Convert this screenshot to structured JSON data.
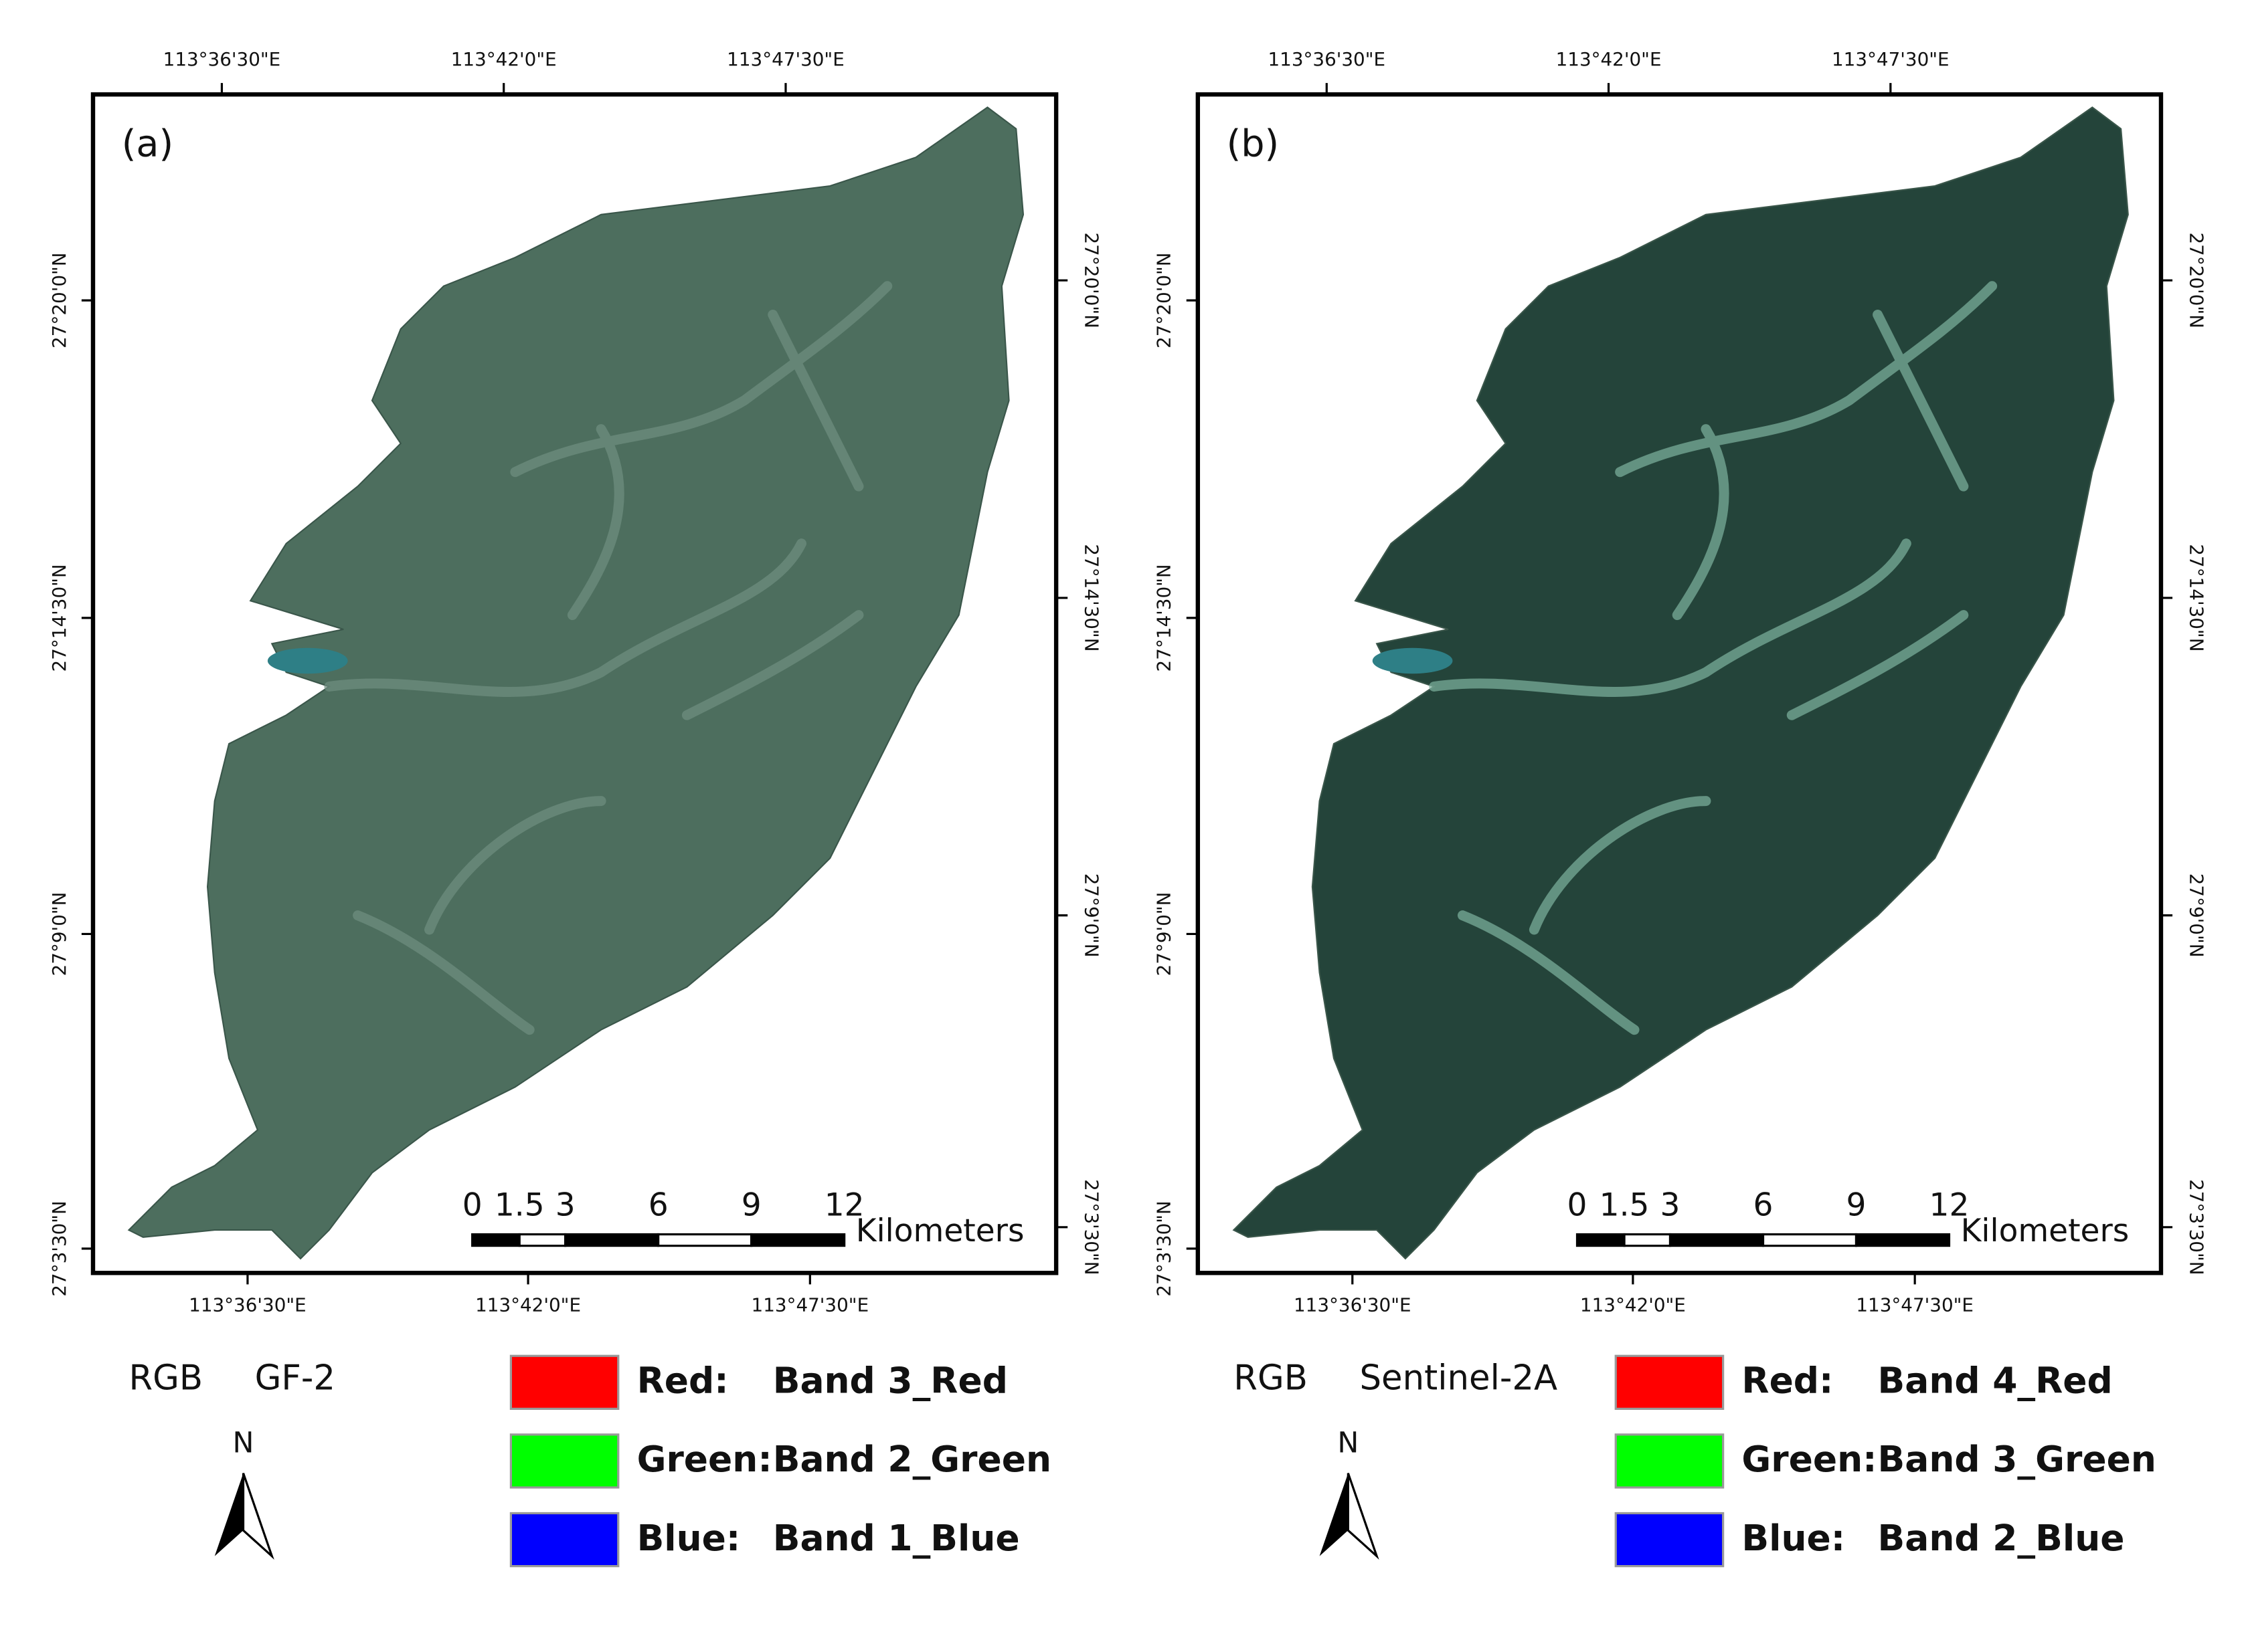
{
  "panels": [
    {
      "label": "(a)",
      "top_ticks": [
        "113°36'30\"E",
        "113°42'0\"E",
        "113°47'30\"E"
      ],
      "bottom_ticks": [
        "113°36'30\"E",
        "113°42'0\"E",
        "113°47'30\"E"
      ],
      "left_ticks": [
        "27°20'0\"N",
        "27°14'30\"N",
        "27°9'0\"N",
        "27°3'30\"N"
      ],
      "right_ticks": [
        "27°20'0\"N",
        "27°14'30\"N",
        "27°9'0\"N",
        "27°3'30\"N"
      ],
      "scale_bar": {
        "labels": [
          "0",
          "1.5",
          "3",
          "6",
          "9",
          "12"
        ],
        "unit": "Kilometers"
      },
      "rgb": "RGB",
      "sensor": "GF-2",
      "north": "N",
      "legend": [
        {
          "color": "#ff0000",
          "channel": "Red:",
          "band": "Band 3_Red"
        },
        {
          "color": "#00ff00",
          "channel": "Green:",
          "band": "Band 2_Green"
        },
        {
          "color": "#0000ff",
          "channel": "Blue:",
          "band": "Band 1_Blue"
        }
      ]
    },
    {
      "label": "(b)",
      "top_ticks": [
        "113°36'30\"E",
        "113°42'0\"E",
        "113°47'30\"E"
      ],
      "bottom_ticks": [
        "113°36'30\"E",
        "113°42'0\"E",
        "113°47'30\"E"
      ],
      "left_ticks": [
        "27°20'0\"N",
        "27°14'30\"N",
        "27°9'0\"N",
        "27°3'30\"N"
      ],
      "right_ticks": [
        "27°20'0\"N",
        "27°14'30\"N",
        "27°9'0\"N",
        "27°3'30\"N"
      ],
      "scale_bar": {
        "labels": [
          "0",
          "1.5",
          "3",
          "6",
          "9",
          "12"
        ],
        "unit": "Kilometers"
      },
      "rgb": "RGB",
      "sensor": "Sentinel-2A",
      "north": "N",
      "legend": [
        {
          "color": "#ff0000",
          "channel": "Red:",
          "band": "Band 4_Red"
        },
        {
          "color": "#00ff00",
          "channel": "Green:",
          "band": "Band 3_Green"
        },
        {
          "color": "#0000ff",
          "channel": "Blue:",
          "band": "Band 2_Blue"
        }
      ]
    }
  ]
}
